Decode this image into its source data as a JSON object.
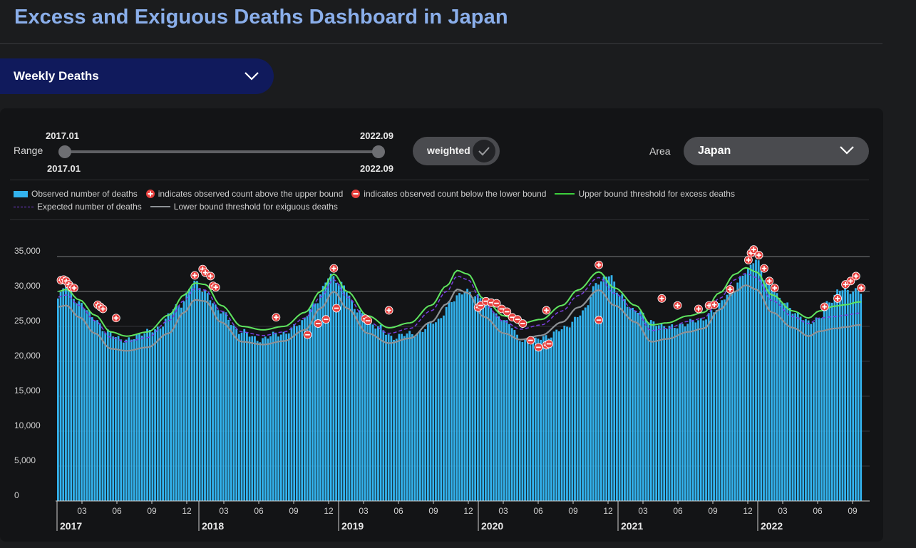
{
  "header": {
    "title": "Excess and Exiguous Deaths Dashboard in Japan"
  },
  "view_select": {
    "selected": "Weekly Deaths"
  },
  "controls": {
    "range_label": "Range",
    "range_start_top": "2017.01",
    "range_end_top": "2022.09",
    "range_start_bottom": "2017.01",
    "range_end_bottom": "2022.09",
    "weighted_label": "weighted",
    "area_label": "Area",
    "area_selected": "Japan"
  },
  "legend": {
    "observed": "Observed number of deaths",
    "above": "indicates observed count above the upper bound",
    "below": "indicates observed count below the lower bound",
    "upper": "Upper bound threshold for excess deaths",
    "expected": "Expected number of deaths",
    "lower": "Lower bound threshold for exiguous deaths"
  },
  "colors": {
    "bar": "#33b3ee",
    "upper": "#5fe55f",
    "expected": "#7b3fe0",
    "lower": "#8e9296",
    "marker": "#e8403e",
    "title": "#8aaeea"
  },
  "chart_data": {
    "type": "bar",
    "title": "",
    "xlabel": "",
    "ylabel": "",
    "ylim": [
      0,
      35000
    ],
    "y_ticks": [
      "0",
      "5,000",
      "10,000",
      "15,000",
      "20,000",
      "25,000",
      "30,000",
      "35,000"
    ],
    "x_month_ticks": [
      "03",
      "06",
      "09",
      "12"
    ],
    "x_year_labels": [
      "2017",
      "2018",
      "2019",
      "2020",
      "2021",
      "2022"
    ],
    "weekly_series_anchors": {
      "note_x": "week index from 2017-W01",
      "observed": [
        [
          0,
          29000
        ],
        [
          3,
          30800
        ],
        [
          8,
          28500
        ],
        [
          14,
          26000
        ],
        [
          18,
          24500
        ],
        [
          24,
          23000
        ],
        [
          30,
          23600
        ],
        [
          38,
          24800
        ],
        [
          46,
          28000
        ],
        [
          52,
          31200
        ],
        [
          56,
          30000
        ],
        [
          62,
          27000
        ],
        [
          70,
          24200
        ],
        [
          76,
          23200
        ],
        [
          84,
          23800
        ],
        [
          92,
          25200
        ],
        [
          98,
          28500
        ],
        [
          104,
          32200
        ],
        [
          108,
          31200
        ],
        [
          114,
          27200
        ],
        [
          122,
          24800
        ],
        [
          128,
          23500
        ],
        [
          136,
          24000
        ],
        [
          144,
          25600
        ],
        [
          150,
          28600
        ],
        [
          156,
          30200
        ],
        [
          160,
          29200
        ],
        [
          164,
          28200
        ],
        [
          168,
          26500
        ],
        [
          172,
          25200
        ],
        [
          176,
          23300
        ],
        [
          180,
          22600
        ],
        [
          186,
          23600
        ],
        [
          192,
          24500
        ],
        [
          200,
          27000
        ],
        [
          206,
          31500
        ],
        [
          210,
          32400
        ],
        [
          214,
          29500
        ],
        [
          220,
          27200
        ],
        [
          226,
          25800
        ],
        [
          232,
          24800
        ],
        [
          238,
          25300
        ],
        [
          244,
          25800
        ],
        [
          250,
          27200
        ],
        [
          256,
          29800
        ],
        [
          262,
          32500
        ],
        [
          266,
          34800
        ],
        [
          270,
          31500
        ],
        [
          276,
          28800
        ],
        [
          282,
          26500
        ],
        [
          286,
          25800
        ],
        [
          290,
          26000
        ],
        [
          294,
          28500
        ],
        [
          298,
          30500
        ],
        [
          302,
          29800
        ],
        [
          305,
          30200
        ]
      ],
      "upper": [
        [
          0,
          30000
        ],
        [
          3,
          30300
        ],
        [
          8,
          28800
        ],
        [
          14,
          26600
        ],
        [
          20,
          24200
        ],
        [
          26,
          23600
        ],
        [
          34,
          24200
        ],
        [
          42,
          26600
        ],
        [
          48,
          29500
        ],
        [
          52,
          31200
        ],
        [
          56,
          31000
        ],
        [
          62,
          28000
        ],
        [
          70,
          25000
        ],
        [
          78,
          24500
        ],
        [
          86,
          25000
        ],
        [
          94,
          27000
        ],
        [
          100,
          30000
        ],
        [
          105,
          32500
        ],
        [
          110,
          30000
        ],
        [
          118,
          26500
        ],
        [
          126,
          24800
        ],
        [
          134,
          25500
        ],
        [
          142,
          28000
        ],
        [
          148,
          30800
        ],
        [
          152,
          33000
        ],
        [
          156,
          32500
        ],
        [
          162,
          29000
        ],
        [
          170,
          26500
        ],
        [
          176,
          25400
        ],
        [
          184,
          26000
        ],
        [
          192,
          28000
        ],
        [
          198,
          30200
        ],
        [
          206,
          32800
        ],
        [
          212,
          30500
        ],
        [
          220,
          28000
        ],
        [
          226,
          25200
        ],
        [
          232,
          25500
        ],
        [
          240,
          26500
        ],
        [
          246,
          27000
        ],
        [
          252,
          29800
        ],
        [
          258,
          32500
        ],
        [
          262,
          33400
        ],
        [
          266,
          32800
        ],
        [
          272,
          29500
        ],
        [
          280,
          27200
        ],
        [
          286,
          26200
        ],
        [
          290,
          27200
        ],
        [
          296,
          27900
        ],
        [
          300,
          28100
        ],
        [
          305,
          28500
        ]
      ],
      "expected": [
        [
          0,
          29200
        ],
        [
          3,
          29500
        ],
        [
          8,
          28000
        ],
        [
          14,
          25800
        ],
        [
          20,
          23400
        ],
        [
          26,
          22800
        ],
        [
          34,
          23400
        ],
        [
          42,
          25800
        ],
        [
          48,
          28700
        ],
        [
          52,
          30400
        ],
        [
          56,
          30200
        ],
        [
          62,
          27200
        ],
        [
          70,
          24200
        ],
        [
          78,
          23700
        ],
        [
          86,
          24200
        ],
        [
          94,
          26200
        ],
        [
          100,
          29200
        ],
        [
          105,
          31700
        ],
        [
          110,
          29200
        ],
        [
          118,
          25700
        ],
        [
          126,
          24000
        ],
        [
          134,
          24700
        ],
        [
          142,
          27200
        ],
        [
          148,
          30000
        ],
        [
          152,
          32200
        ],
        [
          156,
          31700
        ],
        [
          162,
          28200
        ],
        [
          170,
          25700
        ],
        [
          176,
          24600
        ],
        [
          184,
          25200
        ],
        [
          192,
          27200
        ],
        [
          198,
          29400
        ],
        [
          206,
          32000
        ],
        [
          212,
          29700
        ],
        [
          220,
          27200
        ],
        [
          226,
          24400
        ],
        [
          232,
          24700
        ],
        [
          240,
          25700
        ],
        [
          246,
          26200
        ],
        [
          252,
          29000
        ],
        [
          258,
          31700
        ],
        [
          262,
          32600
        ],
        [
          266,
          32000
        ],
        [
          272,
          28700
        ],
        [
          280,
          26400
        ],
        [
          286,
          25400
        ],
        [
          290,
          26200
        ],
        [
          296,
          26400
        ],
        [
          300,
          26600
        ],
        [
          305,
          26900
        ]
      ],
      "lower": [
        [
          0,
          27800
        ],
        [
          3,
          28000
        ],
        [
          8,
          26300
        ],
        [
          14,
          24000
        ],
        [
          20,
          21800
        ],
        [
          26,
          21500
        ],
        [
          34,
          22000
        ],
        [
          42,
          24000
        ],
        [
          48,
          27000
        ],
        [
          52,
          28800
        ],
        [
          56,
          28600
        ],
        [
          62,
          25600
        ],
        [
          70,
          22800
        ],
        [
          78,
          22400
        ],
        [
          86,
          22900
        ],
        [
          94,
          24500
        ],
        [
          100,
          27600
        ],
        [
          105,
          30000
        ],
        [
          110,
          27600
        ],
        [
          118,
          24000
        ],
        [
          126,
          22600
        ],
        [
          134,
          23300
        ],
        [
          142,
          25600
        ],
        [
          148,
          28200
        ],
        [
          152,
          30300
        ],
        [
          156,
          29800
        ],
        [
          162,
          26400
        ],
        [
          170,
          24000
        ],
        [
          176,
          23100
        ],
        [
          184,
          23700
        ],
        [
          192,
          25600
        ],
        [
          198,
          27700
        ],
        [
          206,
          30200
        ],
        [
          212,
          28000
        ],
        [
          220,
          25600
        ],
        [
          226,
          22800
        ],
        [
          232,
          23200
        ],
        [
          240,
          24200
        ],
        [
          246,
          24700
        ],
        [
          252,
          27400
        ],
        [
          258,
          30000
        ],
        [
          262,
          30900
        ],
        [
          266,
          30300
        ],
        [
          272,
          27000
        ],
        [
          280,
          24800
        ],
        [
          286,
          23600
        ],
        [
          290,
          24300
        ],
        [
          296,
          24700
        ],
        [
          300,
          24900
        ],
        [
          305,
          25200
        ]
      ]
    },
    "above_points": [
      [
        1,
        31600
      ],
      [
        2,
        31700
      ],
      [
        3,
        31500
      ],
      [
        4,
        31000
      ],
      [
        5,
        30600
      ],
      [
        6,
        30500
      ],
      [
        15,
        28100
      ],
      [
        16,
        27800
      ],
      [
        17,
        27500
      ],
      [
        22,
        26200
      ],
      [
        52,
        32300
      ],
      [
        55,
        33200
      ],
      [
        56,
        32700
      ],
      [
        58,
        32200
      ],
      [
        59,
        30800
      ],
      [
        60,
        30600
      ],
      [
        83,
        26300
      ],
      [
        105,
        33300
      ],
      [
        126,
        27300
      ],
      [
        186,
        27300
      ],
      [
        206,
        33800
      ],
      [
        230,
        29000
      ],
      [
        236,
        28000
      ],
      [
        244,
        27500
      ],
      [
        248,
        28000
      ],
      [
        250,
        28100
      ],
      [
        256,
        30300
      ],
      [
        263,
        34500
      ],
      [
        264,
        35500
      ],
      [
        265,
        36000
      ],
      [
        267,
        35200
      ],
      [
        269,
        33300
      ],
      [
        271,
        31500
      ],
      [
        273,
        30500
      ],
      [
        292,
        27800
      ],
      [
        297,
        29000
      ],
      [
        300,
        31000
      ],
      [
        302,
        31500
      ],
      [
        304,
        32200
      ],
      [
        306,
        30500
      ]
    ],
    "below_points": [
      [
        95,
        23800
      ],
      [
        99,
        25400
      ],
      [
        102,
        26000
      ],
      [
        106,
        27600
      ],
      [
        117,
        26100
      ],
      [
        118,
        25800
      ],
      [
        160,
        27700
      ],
      [
        161,
        28000
      ],
      [
        163,
        28600
      ],
      [
        165,
        28400
      ],
      [
        167,
        28300
      ],
      [
        169,
        27500
      ],
      [
        171,
        27100
      ],
      [
        173,
        26300
      ],
      [
        175,
        26000
      ],
      [
        177,
        25400
      ],
      [
        180,
        23000
      ],
      [
        183,
        22000
      ],
      [
        186,
        22300
      ],
      [
        187,
        22500
      ],
      [
        206,
        25900
      ]
    ]
  }
}
